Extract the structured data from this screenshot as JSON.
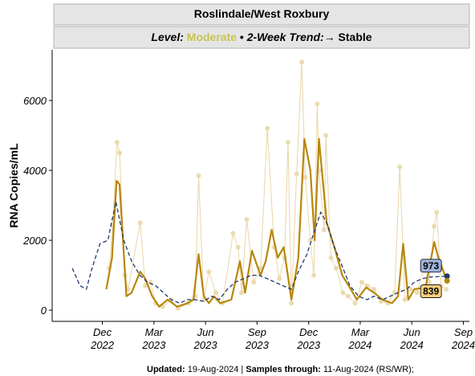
{
  "chart_data": {
    "type": "line",
    "title": "Roslindale/West Roxbury",
    "subtitle": {
      "level_label": "Level:",
      "level": "Moderate",
      "level_color": "#c9c44f",
      "separator": "•",
      "trend_label": "2-Week Trend:",
      "trend": "→ Stable"
    },
    "y_label": "RNA Copies/mL",
    "xlim": [
      -2.92,
      21.35
    ],
    "xticks": [
      {
        "value": 0,
        "label": "Dec 2022"
      },
      {
        "value": 3,
        "label": "Mar 2023"
      },
      {
        "value": 6,
        "label": "Jun 2023"
      },
      {
        "value": 9,
        "label": "Sep 2023"
      },
      {
        "value": 12,
        "label": "Dec 2023"
      },
      {
        "value": 15,
        "label": "Mar 2024"
      },
      {
        "value": 18,
        "label": "Jun 2024"
      },
      {
        "value": 21,
        "label": "Sep 2024"
      }
    ],
    "ylim": [
      -320,
      7450
    ],
    "yticks": [
      0,
      2000,
      4000,
      6000
    ],
    "grid": false,
    "series": [
      {
        "style": "samples",
        "color": "#e8d6a6",
        "x": [
          0.4,
          0.6,
          0.85,
          1.0,
          1.3,
          1.5,
          2.2,
          2.5,
          2.8,
          3.1,
          3.5,
          4.0,
          4.4,
          5.0,
          5.4,
          5.6,
          5.9,
          6.2,
          6.6,
          7.0,
          7.6,
          7.9,
          8.1,
          8.4,
          8.8,
          9.2,
          9.6,
          10.0,
          10.3,
          10.6,
          10.8,
          11.0,
          11.3,
          11.6,
          11.8,
          12.1,
          12.3,
          12.5,
          12.6,
          12.9,
          13.0,
          13.3,
          13.6,
          14.0,
          14.3,
          14.7,
          15.1,
          15.4,
          15.8,
          16.2,
          16.6,
          17.0,
          17.3,
          17.6,
          17.9,
          18.3,
          18.7,
          19.0,
          19.3,
          19.45,
          19.7,
          20.0
        ],
        "values": [
          1200,
          2400,
          4800,
          4500,
          1000,
          600,
          2500,
          700,
          800,
          200,
          100,
          300,
          50,
          200,
          400,
          3850,
          300,
          1100,
          500,
          200,
          2200,
          1800,
          500,
          2600,
          800,
          1200,
          5200,
          1800,
          900,
          1500,
          4800,
          200,
          3900,
          7100,
          3800,
          2000,
          1000,
          5900,
          4000,
          2300,
          5000,
          1500,
          1200,
          500,
          400,
          200,
          800,
          700,
          600,
          250,
          200,
          500,
          4100,
          300,
          600,
          500,
          1200,
          800,
          2400,
          2800,
          700,
          600
        ]
      },
      {
        "style": "smooth",
        "color": "#b8860b",
        "x": [
          0.23,
          0.56,
          0.83,
          1.0,
          1.4,
          1.7,
          2.2,
          2.5,
          2.9,
          3.3,
          3.8,
          4.35,
          4.95,
          5.3,
          5.6,
          5.9,
          6.2,
          6.5,
          6.85,
          7.5,
          8.0,
          8.3,
          8.7,
          9.2,
          9.5,
          9.85,
          10.2,
          10.55,
          11.0,
          11.4,
          11.75,
          12.1,
          12.35,
          12.6,
          13.05,
          13.5,
          13.95,
          14.45,
          14.8,
          15.35,
          15.8,
          16.3,
          16.85,
          17.2,
          17.5,
          17.8,
          18.15,
          18.8,
          19.3,
          19.55,
          20.05
        ],
        "values": [
          600,
          1500,
          3700,
          3600,
          400,
          500,
          1100,
          900,
          400,
          100,
          300,
          100,
          200,
          300,
          1600,
          400,
          200,
          400,
          200,
          300,
          1400,
          500,
          1700,
          1000,
          1400,
          2300,
          1500,
          1800,
          300,
          1500,
          4900,
          4000,
          2000,
          4900,
          2500,
          1800,
          1000,
          600,
          300,
          650,
          500,
          300,
          200,
          400,
          1900,
          300,
          600,
          650,
          1950,
          1500,
          839
        ]
      },
      {
        "style": "dashed",
        "color": "#1f3a6b",
        "x": [
          -1.75,
          -1.3,
          -0.93,
          -0.6,
          -0.14,
          0.32,
          0.79,
          1.25,
          1.7,
          2.18,
          2.64,
          3.1,
          3.56,
          4.0,
          4.5,
          4.95,
          5.4,
          5.9,
          6.35,
          6.8,
          7.27,
          7.73,
          8.2,
          8.66,
          9.1,
          9.6,
          10.05,
          10.5,
          11.0,
          11.4,
          11.9,
          12.36,
          12.7,
          13.05,
          13.5,
          14.0,
          14.4,
          14.9,
          15.4,
          15.8,
          16.3,
          16.75,
          17.2,
          17.7,
          18.15,
          18.6,
          19.07,
          20.05
        ],
        "values": [
          1200,
          700,
          600,
          1200,
          1900,
          2000,
          3100,
          2000,
          1400,
          1000,
          800,
          700,
          500,
          300,
          200,
          300,
          300,
          250,
          400,
          300,
          600,
          800,
          900,
          1000,
          1000,
          900,
          800,
          700,
          600,
          1100,
          1600,
          2300,
          2800,
          2500,
          1800,
          1200,
          700,
          400,
          300,
          400,
          300,
          400,
          500,
          600,
          800,
          900,
          950,
          973
        ]
      }
    ],
    "footer": {
      "updated_label": "Updated:",
      "updated": "19-Aug-2024",
      "sep": "|",
      "samples_label": "Samples through:",
      "samples": "11-Aug-2024 (RS/WR);"
    }
  }
}
